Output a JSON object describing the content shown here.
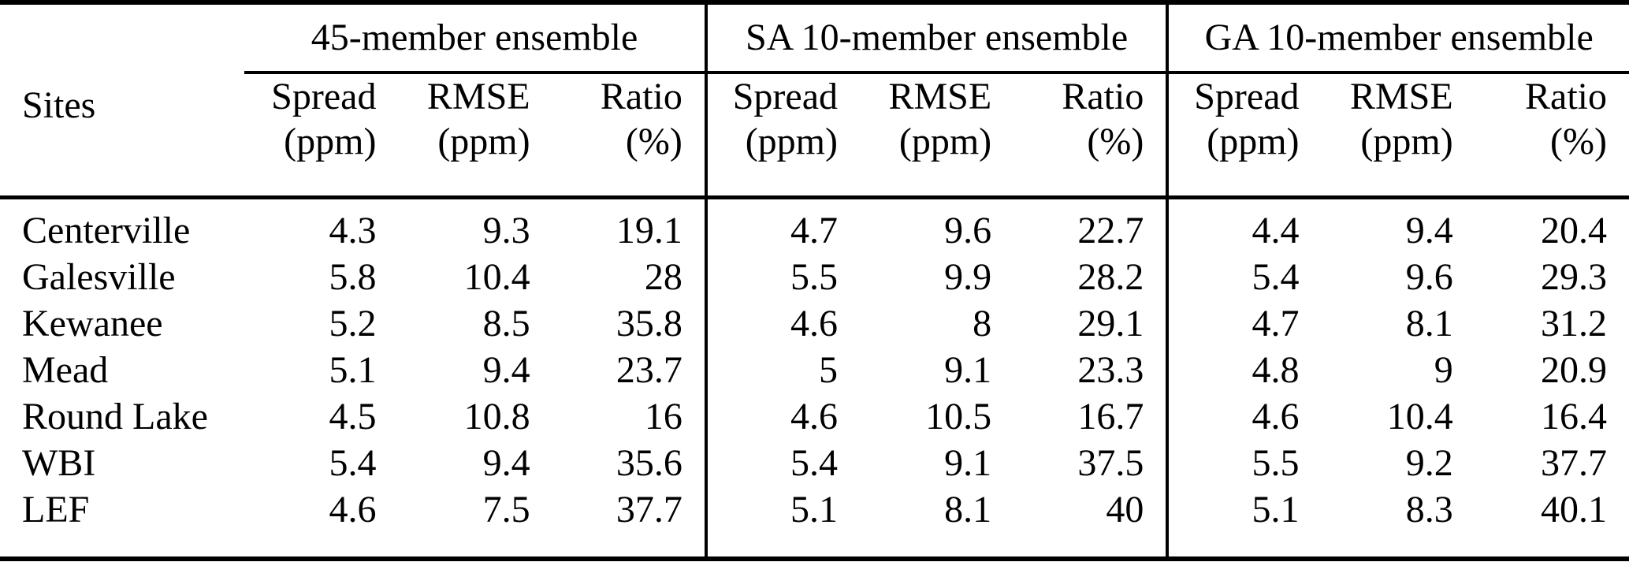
{
  "page": {
    "background_color": "#ffffff",
    "text_color": "#000000",
    "rule_color": "#000000"
  },
  "table": {
    "corner_header": "Sites",
    "groups": [
      {
        "title": "45-member ensemble",
        "columns": [
          {
            "label": "Spread",
            "unit": "(ppm)"
          },
          {
            "label": "RMSE",
            "unit": "(ppm)"
          },
          {
            "label": "Ratio",
            "unit": "(%)"
          }
        ]
      },
      {
        "title": "SA 10-member ensemble",
        "columns": [
          {
            "label": "Spread",
            "unit": "(ppm)"
          },
          {
            "label": "RMSE",
            "unit": "(ppm)"
          },
          {
            "label": "Ratio",
            "unit": "(%)"
          }
        ]
      },
      {
        "title": "GA 10-member ensemble",
        "columns": [
          {
            "label": "Spread",
            "unit": "(ppm)"
          },
          {
            "label": "RMSE",
            "unit": "(ppm)"
          },
          {
            "label": "Ratio",
            "unit": "(%)"
          }
        ]
      }
    ],
    "rows": [
      {
        "site": "Centerville",
        "values": [
          "4.3",
          "9.3",
          "19.1",
          "4.7",
          "9.6",
          "22.7",
          "4.4",
          "9.4",
          "20.4"
        ]
      },
      {
        "site": "Galesville",
        "values": [
          "5.8",
          "10.4",
          "28",
          "5.5",
          "9.9",
          "28.2",
          "5.4",
          "9.6",
          "29.3"
        ]
      },
      {
        "site": "Kewanee",
        "values": [
          "5.2",
          "8.5",
          "35.8",
          "4.6",
          "8",
          "29.1",
          "4.7",
          "8.1",
          "31.2"
        ]
      },
      {
        "site": "Mead",
        "values": [
          "5.1",
          "9.4",
          "23.7",
          "5",
          "9.1",
          "23.3",
          "4.8",
          "9",
          "20.9"
        ]
      },
      {
        "site": "Round Lake",
        "values": [
          "4.5",
          "10.8",
          "16",
          "4.6",
          "10.5",
          "16.7",
          "4.6",
          "10.4",
          "16.4"
        ]
      },
      {
        "site": "WBI",
        "values": [
          "5.4",
          "9.4",
          "35.6",
          "5.4",
          "9.1",
          "37.5",
          "5.5",
          "9.2",
          "37.7"
        ]
      },
      {
        "site": "LEF",
        "values": [
          "4.6",
          "7.5",
          "37.7",
          "5.1",
          "8.1",
          "40",
          "5.1",
          "8.3",
          "40.1"
        ]
      }
    ]
  }
}
